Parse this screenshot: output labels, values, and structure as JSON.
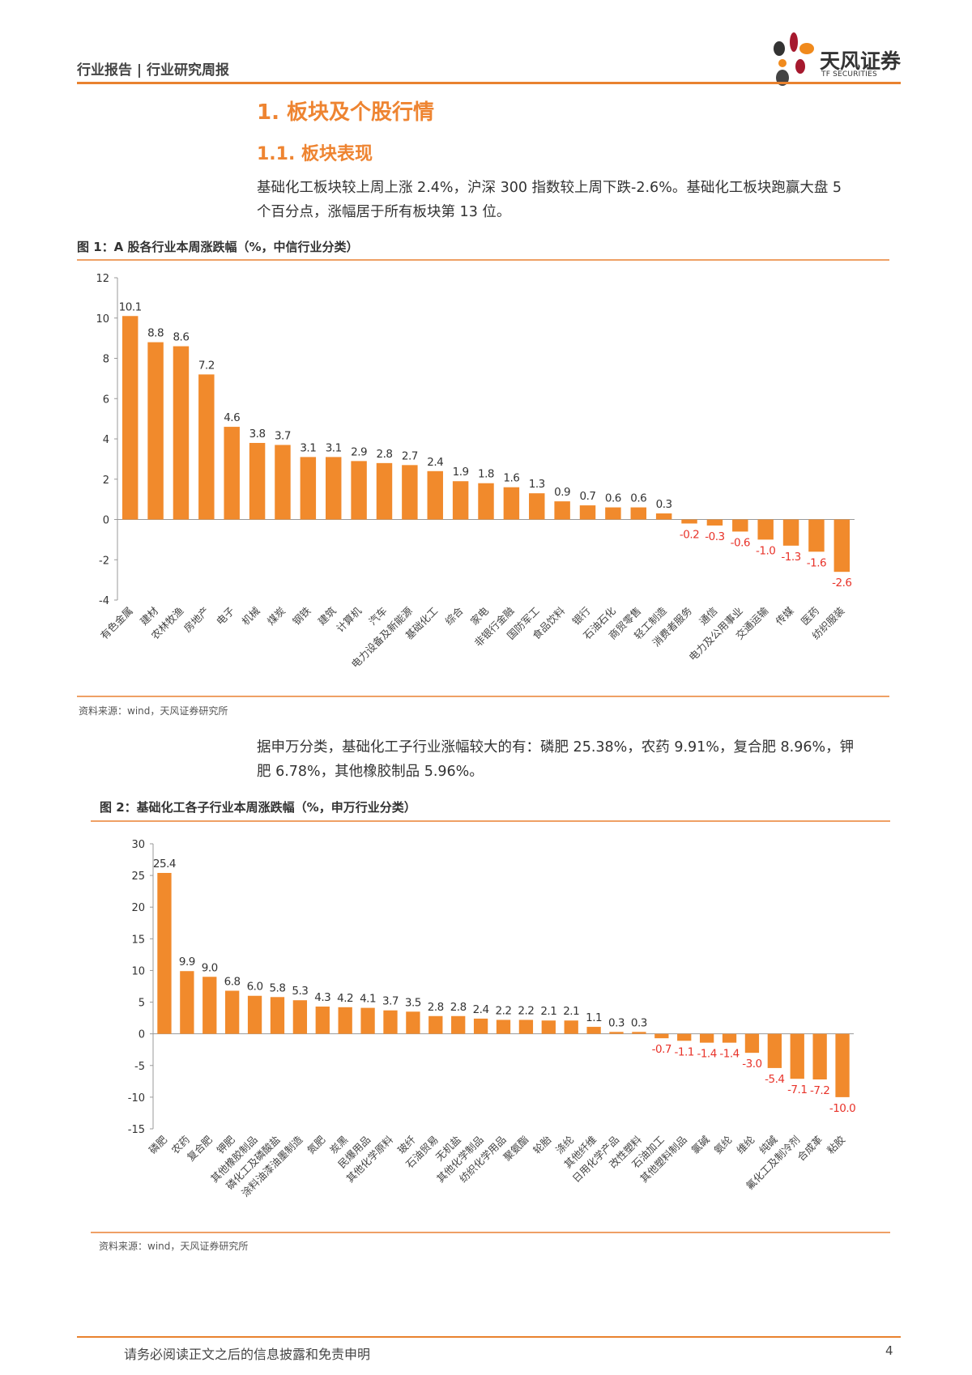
{
  "header": {
    "title": "行业报告 | 行业研究周报",
    "brand_name": "天风证券",
    "brand_sub": "TF SECURITIES"
  },
  "section": {
    "heading": "1. 板块及个股行情",
    "subheading": "1.1. 板块表现"
  },
  "paragraph1": {
    "line1": "基础化工板块较上周上涨 2.4%，沪深 300 指数较上周下跌-2.6%。基础化工板块跑赢大盘 5",
    "line2": "个百分点，涨幅居于所有板块第 13 位。"
  },
  "paragraph2": {
    "line1": "据申万分类，基础化工子行业涨幅较大的有：磷肥 25.38%，农药 9.91%，复合肥 8.96%，钾",
    "line2": "肥 6.78%，其他橡胶制品 5.96%。"
  },
  "figure1": {
    "title": "图 1：A 股各行业本周涨跌幅（%，中信行业分类）",
    "source": "资料来源：wind，天风证券研究所"
  },
  "figure2": {
    "title": "图 2：基础化工各子行业本周涨跌幅（%，申万行业分类）",
    "source": "资料来源：wind，天风证券研究所"
  },
  "footer": {
    "disclaimer": "请务必阅读正文之后的信息披露和免责申明",
    "page": "4"
  },
  "colors": {
    "bar": "#F18A2C",
    "negative_label": "#E8332A",
    "accent": "#E9822F"
  },
  "chart_data": [
    {
      "type": "bar",
      "ylim": [
        -4,
        12
      ],
      "yticks": [
        12,
        10,
        8,
        6,
        4,
        2,
        0,
        -2,
        -4
      ],
      "grid": false,
      "categories": [
        "有色金属",
        "建材",
        "农林牧渔",
        "房地产",
        "电子",
        "机械",
        "煤炭",
        "钢铁",
        "建筑",
        "计算机",
        "汽车",
        "电力设备及新能源",
        "基础化工",
        "综合",
        "家电",
        "非银行金融",
        "国防军工",
        "食品饮料",
        "银行",
        "石油石化",
        "商贸零售",
        "轻工制造",
        "消费者服务",
        "通信",
        "电力及公用事业",
        "交通运输",
        "传媒",
        "医药",
        "纺织服装"
      ],
      "values": [
        10.1,
        8.8,
        8.6,
        7.2,
        4.6,
        3.8,
        3.7,
        3.1,
        3.1,
        2.9,
        2.8,
        2.7,
        2.4,
        1.9,
        1.8,
        1.6,
        1.3,
        0.9,
        0.7,
        0.6,
        0.6,
        0.3,
        -0.2,
        -0.3,
        -0.6,
        -1.0,
        -1.3,
        -1.6,
        -2.6
      ]
    },
    {
      "type": "bar",
      "ylim": [
        -15,
        30
      ],
      "yticks": [
        30,
        25,
        20,
        15,
        10,
        5,
        0,
        -5,
        -10,
        -15
      ],
      "grid": false,
      "categories": [
        "磷肥",
        "农药",
        "复合肥",
        "钾肥",
        "其他橡胶制品",
        "磷化工及磷酸盐",
        "涂料油漆油墨制造",
        "氮肥",
        "炭黑",
        "民爆用品",
        "其他化学原料",
        "玻纤",
        "石油贸易",
        "无机盐",
        "其他化学制品",
        "纺织化学用品",
        "聚氨酯",
        "轮胎",
        "涤纶",
        "其他纤维",
        "日用化学产品",
        "改性塑料",
        "石油加工",
        "其他塑料制品",
        "氯碱",
        "氨纶",
        "维纶",
        "纯碱",
        "氟化工及制冷剂",
        "合成革",
        "粘胶"
      ],
      "values": [
        25.4,
        9.9,
        9.0,
        6.8,
        6.0,
        5.8,
        5.3,
        4.3,
        4.2,
        4.1,
        3.7,
        3.5,
        2.8,
        2.8,
        2.4,
        2.2,
        2.2,
        2.1,
        2.1,
        1.1,
        0.3,
        0.3,
        -0.7,
        -1.1,
        -1.4,
        -1.4,
        -3.0,
        -5.4,
        -7.1,
        -7.2,
        -10.0
      ]
    }
  ]
}
